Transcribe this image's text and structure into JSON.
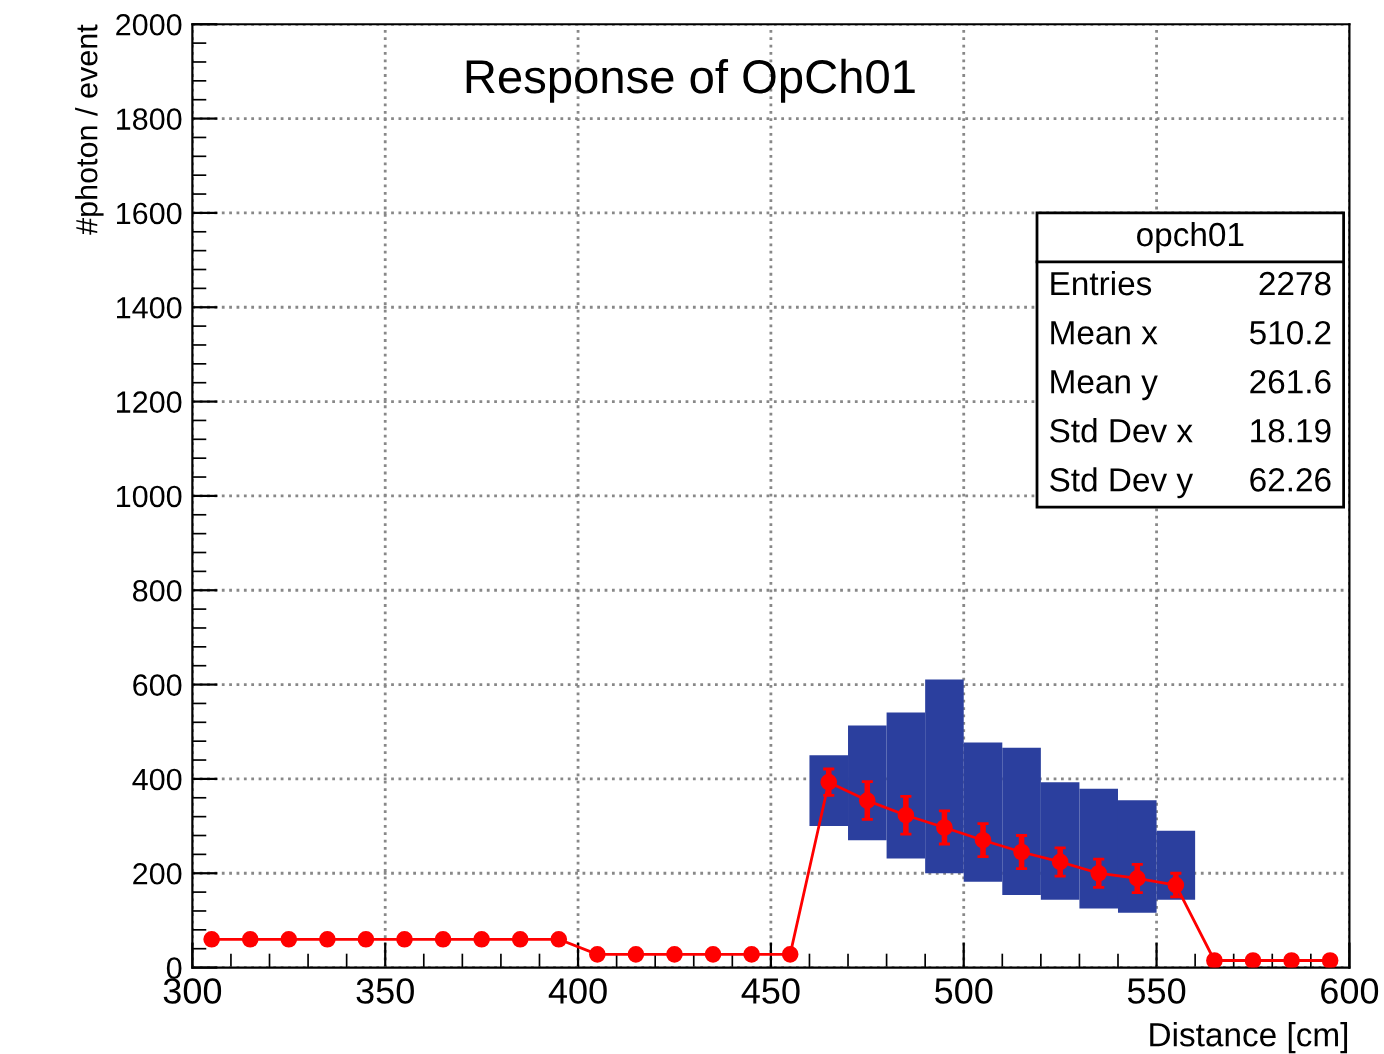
{
  "chart_data": {
    "type": "line",
    "title": "Response of OpCh01",
    "xlabel": "Distance [cm]",
    "ylabel": "#photon / event",
    "xlim": [
      300,
      600
    ],
    "xticks": [
      300,
      350,
      400,
      450,
      500,
      550,
      600
    ],
    "ylim": [
      0,
      2000
    ],
    "yticks": [
      0,
      200,
      400,
      600,
      800,
      1000,
      1200,
      1400,
      1600,
      1800,
      2000
    ],
    "grid": true,
    "series": [
      {
        "type": "bar",
        "color": "#2b3f9e",
        "x": [
          465,
          475,
          485,
          495,
          505,
          515,
          525,
          535,
          545,
          555
        ],
        "base": [
          300,
          270,
          231,
          200,
          182,
          154,
          144,
          125,
          116,
          144
        ],
        "values": [
          150,
          243,
          310,
          411,
          295,
          312,
          249,
          254,
          239,
          146
        ]
      },
      {
        "color": "#ff0000",
        "marker": "circle",
        "x": [
          305,
          315,
          325,
          335,
          345,
          355,
          365,
          375,
          385,
          395,
          405,
          415,
          425,
          435,
          445,
          455,
          465,
          475,
          485,
          495,
          505,
          515,
          525,
          535,
          545,
          555,
          565,
          575,
          585,
          595
        ],
        "values": [
          60,
          60,
          60,
          60,
          60,
          60,
          60,
          60,
          60,
          60,
          28,
          28,
          28,
          28,
          28,
          28,
          393,
          354,
          323,
          297,
          270,
          245,
          224,
          200,
          189,
          175,
          15,
          15,
          15,
          15
        ],
        "errors": [
          8,
          8,
          8,
          8,
          8,
          8,
          8,
          8,
          8,
          8,
          5,
          5,
          5,
          5,
          5,
          5,
          28,
          40,
          40,
          35,
          35,
          35,
          30,
          30,
          30,
          25,
          3,
          3,
          3,
          3
        ]
      }
    ],
    "annotations": [
      "opch01",
      "Entries",
      "2278",
      "Mean x",
      "510.2",
      "Mean y",
      "261.6",
      "Std Dev x",
      "18.19",
      "Std Dev y",
      "62.26"
    ]
  }
}
